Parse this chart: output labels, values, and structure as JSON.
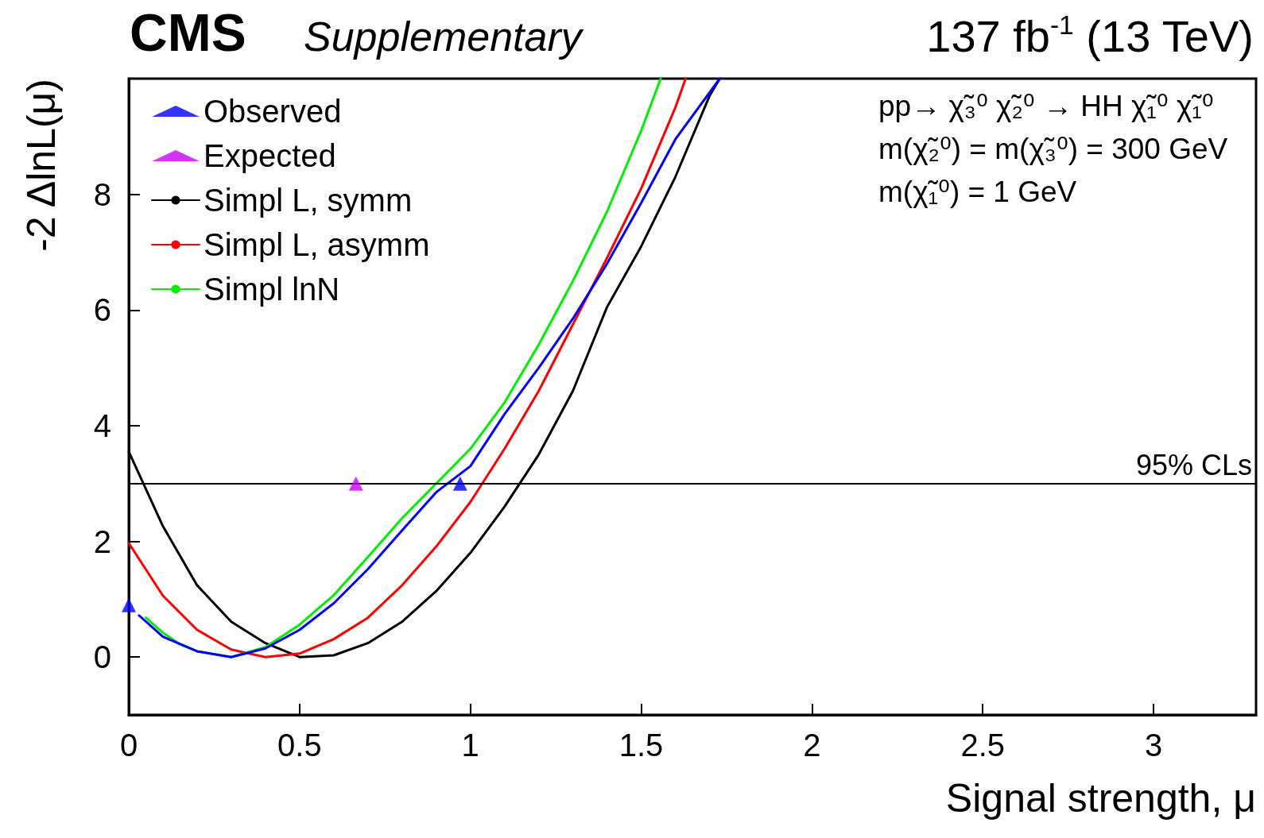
{
  "chart_data": {
    "type": "line",
    "title": "CMS",
    "subtitle": "Supplementary",
    "xlabel": "Signal strength, μ",
    "ylabel": "-2 ΔlnL(μ)",
    "annotations": [
      "137 fb$^{-1}$ (13 TeV)",
      "pp→ χ̃₃⁰ χ̃₂⁰ → HH χ̃₁⁰ χ̃₁⁰",
      "m(χ̃₂⁰) = m(χ̃₃⁰) = 300 GeV",
      "m(χ̃₁⁰) = 1 GeV"
    ],
    "xlim": [
      0,
      3.3
    ],
    "xticks": [
      0,
      0.5,
      1,
      1.5,
      2,
      2.5,
      3
    ],
    "ylim": [
      -1,
      10
    ],
    "yticks": [
      0,
      2,
      4,
      6,
      8
    ],
    "grid": false,
    "legend": "top left",
    "marker": "none",
    "line_style": "solid",
    "ref_lines": [
      {
        "axis": "y",
        "value": 3,
        "label": "95% CLs",
        "color": "#000000"
      }
    ],
    "series": [
      {
        "name": "Observed",
        "type": "scatter",
        "marker": "triangle",
        "color": "#0000ff",
        "x": [
          0,
          0.97
        ],
        "values": [
          0.9,
          3.0
        ]
      },
      {
        "name": "Expected",
        "type": "scatter",
        "marker": "triangle",
        "color": "#cc00ff",
        "x": [
          0.665
        ],
        "values": [
          3.0
        ]
      },
      {
        "name": "Simpl L, symm",
        "color": "#000000",
        "x": [
          0,
          0.1,
          0.2,
          0.3,
          0.4,
          0.5,
          0.6,
          0.7,
          0.8,
          0.9,
          1.0,
          1.1,
          1.2,
          1.3,
          1.4,
          1.5,
          1.6,
          1.7,
          1.73
        ],
        "values": [
          3.55,
          2.26,
          1.24,
          0.61,
          0.24,
          0.0,
          0.03,
          0.24,
          0.61,
          1.14,
          1.8,
          2.6,
          3.5,
          4.6,
          6.05,
          7.1,
          8.3,
          9.7,
          10
        ]
      },
      {
        "name": "Simpl L, asymm",
        "color": "#ff0000",
        "x": [
          0,
          0.1,
          0.2,
          0.3,
          0.4,
          0.5,
          0.6,
          0.7,
          0.8,
          0.9,
          1.0,
          1.1,
          1.2,
          1.3,
          1.4,
          1.5,
          1.6,
          1.63
        ],
        "values": [
          1.97,
          1.06,
          0.47,
          0.13,
          0.0,
          0.06,
          0.31,
          0.68,
          1.24,
          1.91,
          2.68,
          3.6,
          4.6,
          5.75,
          6.9,
          8.1,
          9.5,
          10
        ]
      },
      {
        "name": "Simpl lnN",
        "color": "#00ee00",
        "x": [
          0.05,
          0.1,
          0.15,
          0.2,
          0.3,
          0.4,
          0.5,
          0.6,
          0.7,
          0.8,
          0.9,
          1.0,
          1.1,
          1.2,
          1.3,
          1.4,
          1.5,
          1.557
        ],
        "values": [
          0.68,
          0.42,
          0.22,
          0.1,
          0.0,
          0.17,
          0.56,
          1.07,
          1.73,
          2.4,
          3.0,
          3.6,
          4.4,
          5.4,
          6.5,
          7.7,
          9.1,
          10
        ]
      },
      {
        "color": "#0000ff",
        "x": [
          0.03,
          0.1,
          0.2,
          0.3,
          0.4,
          0.5,
          0.6,
          0.7,
          0.8,
          0.9,
          1.0,
          1.1,
          1.2,
          1.3,
          1.4,
          1.5,
          1.6,
          1.73
        ],
        "values": [
          0.72,
          0.35,
          0.1,
          0.0,
          0.15,
          0.47,
          0.93,
          1.52,
          2.19,
          2.85,
          3.3,
          4.2,
          5.0,
          5.85,
          6.8,
          7.85,
          8.95,
          10
        ]
      }
    ]
  }
}
